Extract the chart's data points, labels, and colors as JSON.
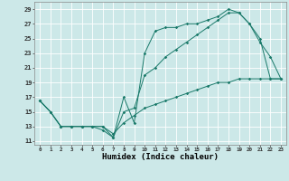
{
  "title": "",
  "xlabel": "Humidex (Indice chaleur)",
  "bg_color": "#cce8e8",
  "grid_color": "#ffffff",
  "line_color": "#1a7a6a",
  "xlim": [
    -0.5,
    23.5
  ],
  "ylim": [
    10.5,
    30
  ],
  "yticks": [
    11,
    13,
    15,
    17,
    19,
    21,
    23,
    25,
    27,
    29
  ],
  "xticks": [
    0,
    1,
    2,
    3,
    4,
    5,
    6,
    7,
    8,
    9,
    10,
    11,
    12,
    13,
    14,
    15,
    16,
    17,
    18,
    19,
    20,
    21,
    22,
    23
  ],
  "line1_y": [
    16.5,
    15.0,
    13.0,
    13.0,
    13.0,
    13.0,
    12.5,
    11.5,
    17.0,
    13.5,
    23.0,
    26.0,
    26.5,
    26.5,
    27.0,
    27.0,
    27.5,
    28.0,
    29.0,
    28.5,
    27.0,
    24.5,
    22.5,
    19.5
  ],
  "line2_y": [
    16.5,
    15.0,
    13.0,
    13.0,
    13.0,
    13.0,
    13.0,
    11.5,
    15.0,
    15.5,
    20.0,
    21.0,
    22.5,
    23.5,
    24.5,
    25.5,
    26.5,
    27.5,
    28.5,
    28.5,
    27.0,
    25.0,
    19.5,
    19.5
  ],
  "line3_y": [
    16.5,
    15.0,
    13.0,
    13.0,
    13.0,
    13.0,
    13.0,
    12.0,
    13.5,
    14.5,
    15.5,
    16.0,
    16.5,
    17.0,
    17.5,
    18.0,
    18.5,
    19.0,
    19.0,
    19.5,
    19.5,
    19.5,
    19.5,
    19.5
  ]
}
